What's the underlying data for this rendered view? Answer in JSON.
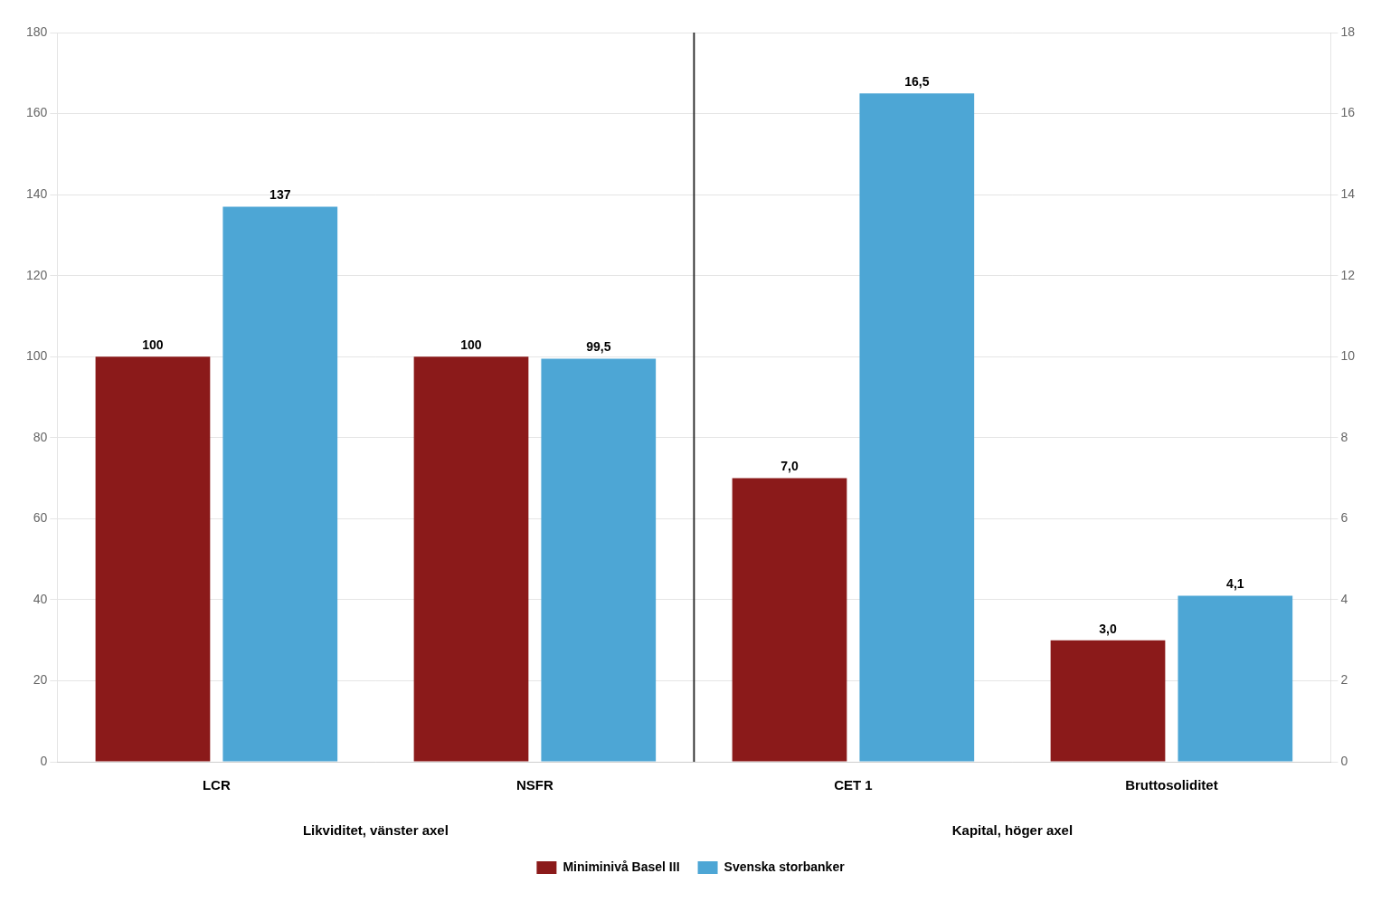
{
  "chart_data": {
    "type": "bar",
    "categories": [
      "LCR",
      "NSFR",
      "CET 1",
      "Bruttosoliditet"
    ],
    "series": [
      {
        "name": "Miniminivå Basel III",
        "color": "#8B1A1A",
        "values": [
          100,
          100,
          null,
          null
        ],
        "value_labels": [
          "100",
          "100",
          null,
          null
        ]
      },
      {
        "name": "Miniminivå Basel III",
        "color": "#8B1A1A",
        "axis": "y2",
        "values": [
          null,
          null,
          7.0,
          3.0
        ],
        "value_labels": [
          null,
          null,
          "7,0",
          "3,0"
        ]
      },
      {
        "name": "Svenska storbanker",
        "color": "#4DA6D5",
        "values": [
          137,
          99.5,
          null,
          null
        ],
        "value_labels": [
          "137",
          "99,5",
          null,
          null
        ]
      },
      {
        "name": "Svenska storbanker",
        "color": "#4DA6D5",
        "axis": "y2",
        "values": [
          null,
          null,
          16.5,
          4.1
        ],
        "value_labels": [
          null,
          null,
          "16,5",
          "4,1"
        ]
      }
    ],
    "ylim": [
      0,
      180
    ],
    "yticks": [
      0,
      20,
      40,
      60,
      80,
      100,
      120,
      140,
      160,
      180
    ],
    "y2lim": [
      0,
      18
    ],
    "y2ticks": [
      0,
      2,
      4,
      6,
      8,
      10,
      12,
      14,
      16,
      18
    ],
    "annotations": [
      {
        "text": "Likviditet, vänster axel",
        "categories": [
          "LCR",
          "NSFR"
        ]
      },
      {
        "text": "Kapital, höger axel",
        "categories": [
          "CET 1",
          "Bruttosoliditet"
        ]
      }
    ],
    "data_labels": true,
    "grid": true,
    "legend": "bottom"
  }
}
